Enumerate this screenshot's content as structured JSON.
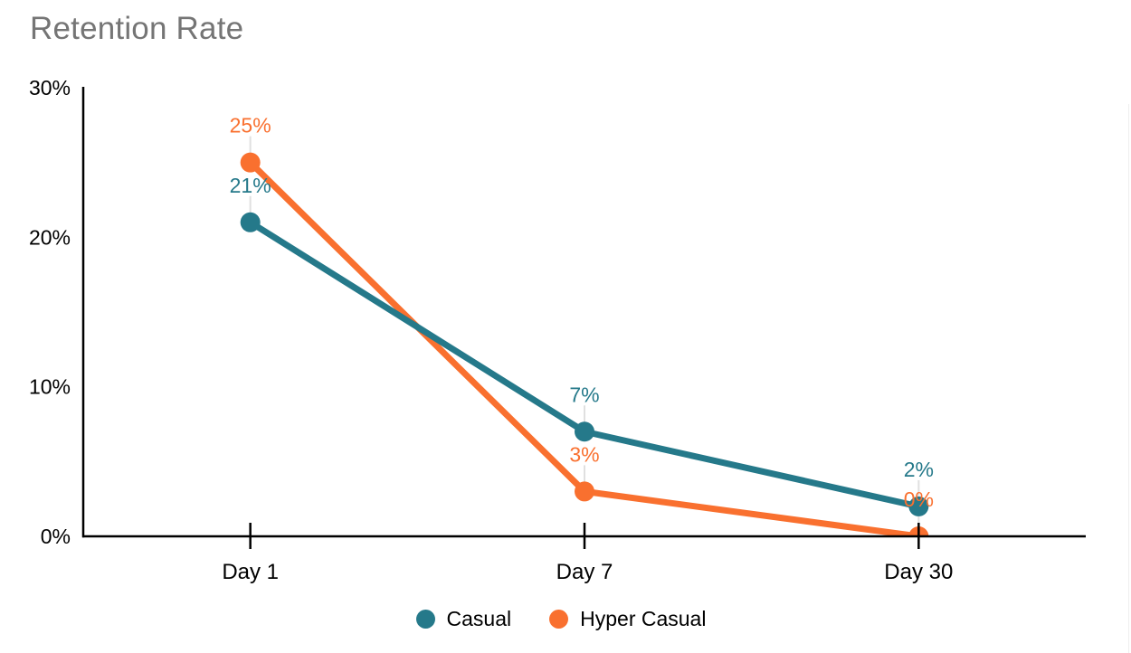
{
  "chart_data": {
    "type": "line",
    "title": "Retention Rate",
    "categories": [
      "Day 1",
      "Day 7",
      "Day 30"
    ],
    "series": [
      {
        "name": "Casual",
        "color": "#25798a",
        "values": [
          21,
          7,
          2
        ],
        "point_labels": [
          "21%",
          "7%",
          "2%"
        ]
      },
      {
        "name": "Hyper Casual",
        "color": "#f9702f",
        "values": [
          25,
          3,
          0
        ],
        "point_labels": [
          "25%",
          "3%",
          "0%"
        ]
      }
    ],
    "xlabel": "",
    "ylabel": "",
    "y_tick_labels": [
      "0%",
      "10%",
      "20%",
      "30%"
    ],
    "y_tick_values": [
      0,
      10,
      20,
      30
    ],
    "ylim": [
      0,
      30
    ],
    "grid": false,
    "legend_position": "bottom",
    "colors": {
      "title": "#757575",
      "axis": "#000000",
      "tick_label": "#000000",
      "legend_text": "#000000",
      "leader_line": "#e0e0e0",
      "background": "#ffffff"
    }
  }
}
